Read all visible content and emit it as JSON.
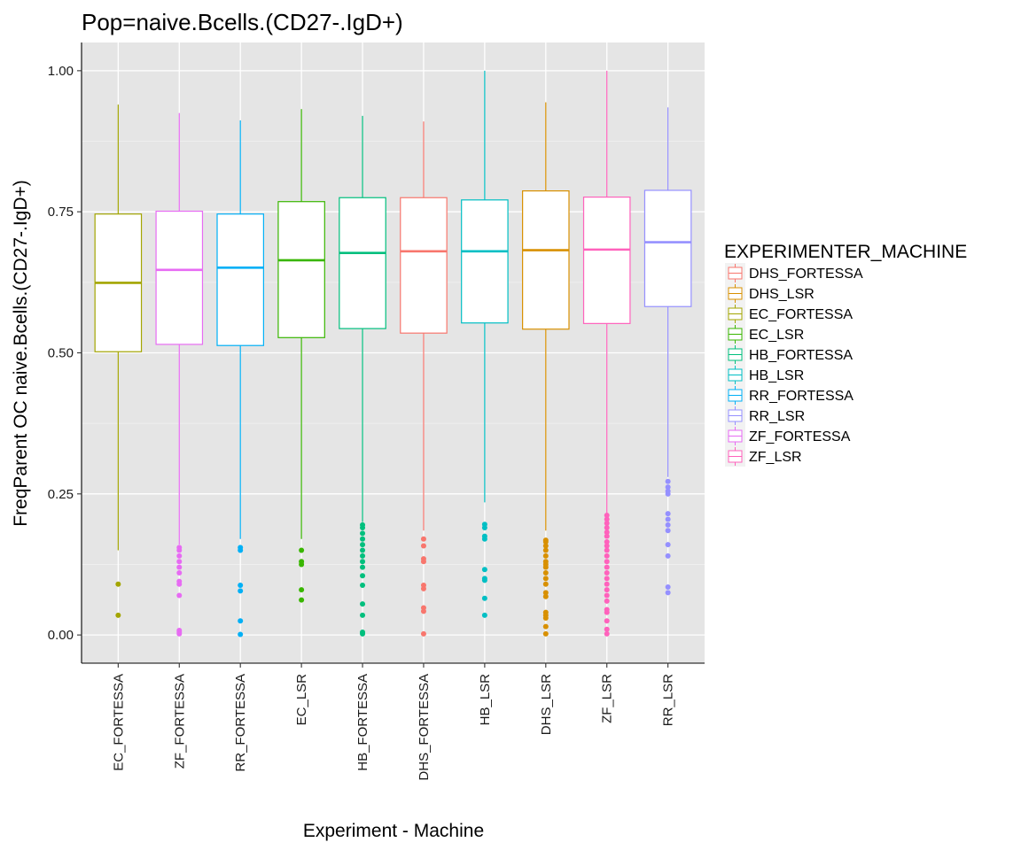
{
  "chart_data": {
    "type": "box",
    "title": "Pop=naive.Bcells.(CD27-.IgD+)",
    "xlabel": "Experiment - Machine",
    "ylabel": "FreqParent OC  naive.Bcells.(CD27-.IgD+)",
    "ylim": [
      -0.05,
      1.05
    ],
    "yticks": [
      "0.00",
      "0.25",
      "0.50",
      "0.75",
      "1.00"
    ],
    "grid": true,
    "legend": {
      "title": "EXPERIMENTER_MACHINE",
      "placement": "right",
      "entries": [
        {
          "label": "DHS_FORTESSA",
          "color": "#F8766D"
        },
        {
          "label": "DHS_LSR",
          "color": "#D89000"
        },
        {
          "label": "EC_FORTESSA",
          "color": "#A3A500"
        },
        {
          "label": "EC_LSR",
          "color": "#39B600"
        },
        {
          "label": "HB_FORTESSA",
          "color": "#00BF7D"
        },
        {
          "label": "HB_LSR",
          "color": "#00BFC4"
        },
        {
          "label": "RR_FORTESSA",
          "color": "#00B0F6"
        },
        {
          "label": "RR_LSR",
          "color": "#9590FF"
        },
        {
          "label": "ZF_FORTESSA",
          "color": "#E76BF3"
        },
        {
          "label": "ZF_LSR",
          "color": "#FF62BC"
        }
      ]
    },
    "categories": [
      "EC_FORTESSA",
      "ZF_FORTESSA",
      "RR_FORTESSA",
      "EC_LSR",
      "HB_FORTESSA",
      "DHS_FORTESSA",
      "HB_LSR",
      "DHS_LSR",
      "ZF_LSR",
      "RR_LSR"
    ],
    "boxes": [
      {
        "group": "EC_FORTESSA",
        "color": "#A3A500",
        "whisker_low": 0.15,
        "q1": 0.502,
        "median": 0.624,
        "q3": 0.746,
        "whisker_high": 0.94,
        "outliers": [
          0.09,
          0.035
        ]
      },
      {
        "group": "ZF_FORTESSA",
        "color": "#E76BF3",
        "whisker_low": 0.16,
        "q1": 0.515,
        "median": 0.647,
        "q3": 0.751,
        "whisker_high": 0.925,
        "outliers": [
          0.155,
          0.15,
          0.14,
          0.13,
          0.12,
          0.11,
          0.095,
          0.09,
          0.07,
          0.008,
          0.005,
          0.002
        ]
      },
      {
        "group": "RR_FORTESSA",
        "color": "#00B0F6",
        "whisker_low": 0.17,
        "q1": 0.513,
        "median": 0.651,
        "q3": 0.746,
        "whisker_high": 0.912,
        "outliers": [
          0.155,
          0.15,
          0.088,
          0.078,
          0.025,
          0.001
        ]
      },
      {
        "group": "EC_LSR",
        "color": "#39B600",
        "whisker_low": 0.17,
        "q1": 0.527,
        "median": 0.664,
        "q3": 0.768,
        "whisker_high": 0.932,
        "outliers": [
          0.15,
          0.13,
          0.125,
          0.08,
          0.062
        ]
      },
      {
        "group": "HB_FORTESSA",
        "color": "#00BF7D",
        "whisker_low": 0.2,
        "q1": 0.543,
        "median": 0.677,
        "q3": 0.775,
        "whisker_high": 0.92,
        "outliers": [
          0.195,
          0.19,
          0.18,
          0.17,
          0.16,
          0.15,
          0.14,
          0.13,
          0.12,
          0.105,
          0.088,
          0.055,
          0.035,
          0.005,
          0.002
        ]
      },
      {
        "group": "DHS_FORTESSA",
        "color": "#F8766D",
        "whisker_low": 0.185,
        "q1": 0.535,
        "median": 0.68,
        "q3": 0.775,
        "whisker_high": 0.91,
        "outliers": [
          0.17,
          0.158,
          0.135,
          0.13,
          0.088,
          0.082,
          0.048,
          0.042,
          0.002
        ]
      },
      {
        "group": "HB_LSR",
        "color": "#00BFC4",
        "whisker_low": 0.235,
        "q1": 0.553,
        "median": 0.68,
        "q3": 0.771,
        "whisker_high": 1.0,
        "outliers": [
          0.196,
          0.19,
          0.175,
          0.17,
          0.116,
          0.1,
          0.097,
          0.065,
          0.035
        ]
      },
      {
        "group": "DHS_LSR",
        "color": "#D89000",
        "whisker_low": 0.185,
        "q1": 0.542,
        "median": 0.682,
        "q3": 0.787,
        "whisker_high": 0.944,
        "outliers": [
          0.168,
          0.165,
          0.158,
          0.15,
          0.14,
          0.13,
          0.125,
          0.12,
          0.11,
          0.1,
          0.09,
          0.075,
          0.068,
          0.04,
          0.035,
          0.03,
          0.015,
          0.002
        ]
      },
      {
        "group": "ZF_LSR",
        "color": "#FF62BC",
        "whisker_low": 0.215,
        "q1": 0.552,
        "median": 0.683,
        "q3": 0.776,
        "whisker_high": 1.0,
        "outliers": [
          0.212,
          0.205,
          0.198,
          0.19,
          0.182,
          0.175,
          0.165,
          0.158,
          0.15,
          0.14,
          0.13,
          0.12,
          0.11,
          0.1,
          0.09,
          0.08,
          0.07,
          0.06,
          0.045,
          0.04,
          0.025,
          0.01,
          0.002
        ]
      },
      {
        "group": "RR_LSR",
        "color": "#9590FF",
        "whisker_low": 0.28,
        "q1": 0.582,
        "median": 0.696,
        "q3": 0.788,
        "whisker_high": 0.935,
        "outliers": [
          0.272,
          0.262,
          0.255,
          0.25,
          0.215,
          0.205,
          0.195,
          0.185,
          0.16,
          0.14,
          0.085,
          0.075
        ]
      }
    ]
  }
}
